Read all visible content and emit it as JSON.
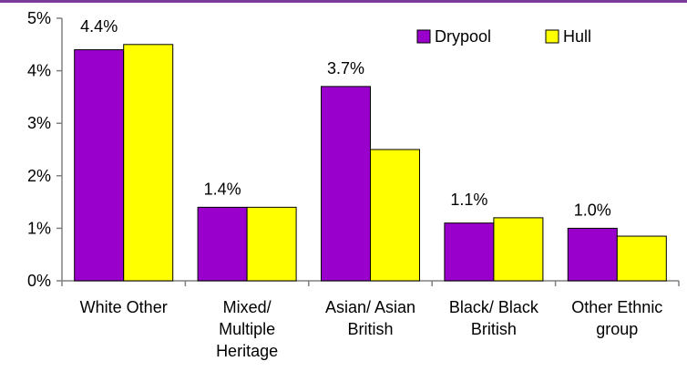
{
  "chart_data": {
    "type": "bar",
    "categories": [
      [
        "White Other"
      ],
      [
        "Mixed/",
        "Multiple",
        "Heritage"
      ],
      [
        "Asian/ Asian",
        "British"
      ],
      [
        "Black/ Black",
        "British"
      ],
      [
        "Other Ethnic",
        "group"
      ]
    ],
    "series": [
      {
        "name": "Drypool",
        "color": "#9900CC",
        "values": [
          4.4,
          1.4,
          3.7,
          1.1,
          1.0
        ]
      },
      {
        "name": "Hull",
        "color": "#FFFF00",
        "values": [
          4.5,
          1.4,
          2.5,
          1.2,
          0.85
        ]
      }
    ],
    "data_labels": [
      "4.4%",
      "1.4%",
      "3.7%",
      "1.1%",
      "1.0%"
    ],
    "y_ticks": [
      "0%",
      "1%",
      "2%",
      "3%",
      "4%",
      "5%"
    ],
    "ylim": [
      0,
      5
    ],
    "grid": false,
    "legend_position": "top-right"
  }
}
